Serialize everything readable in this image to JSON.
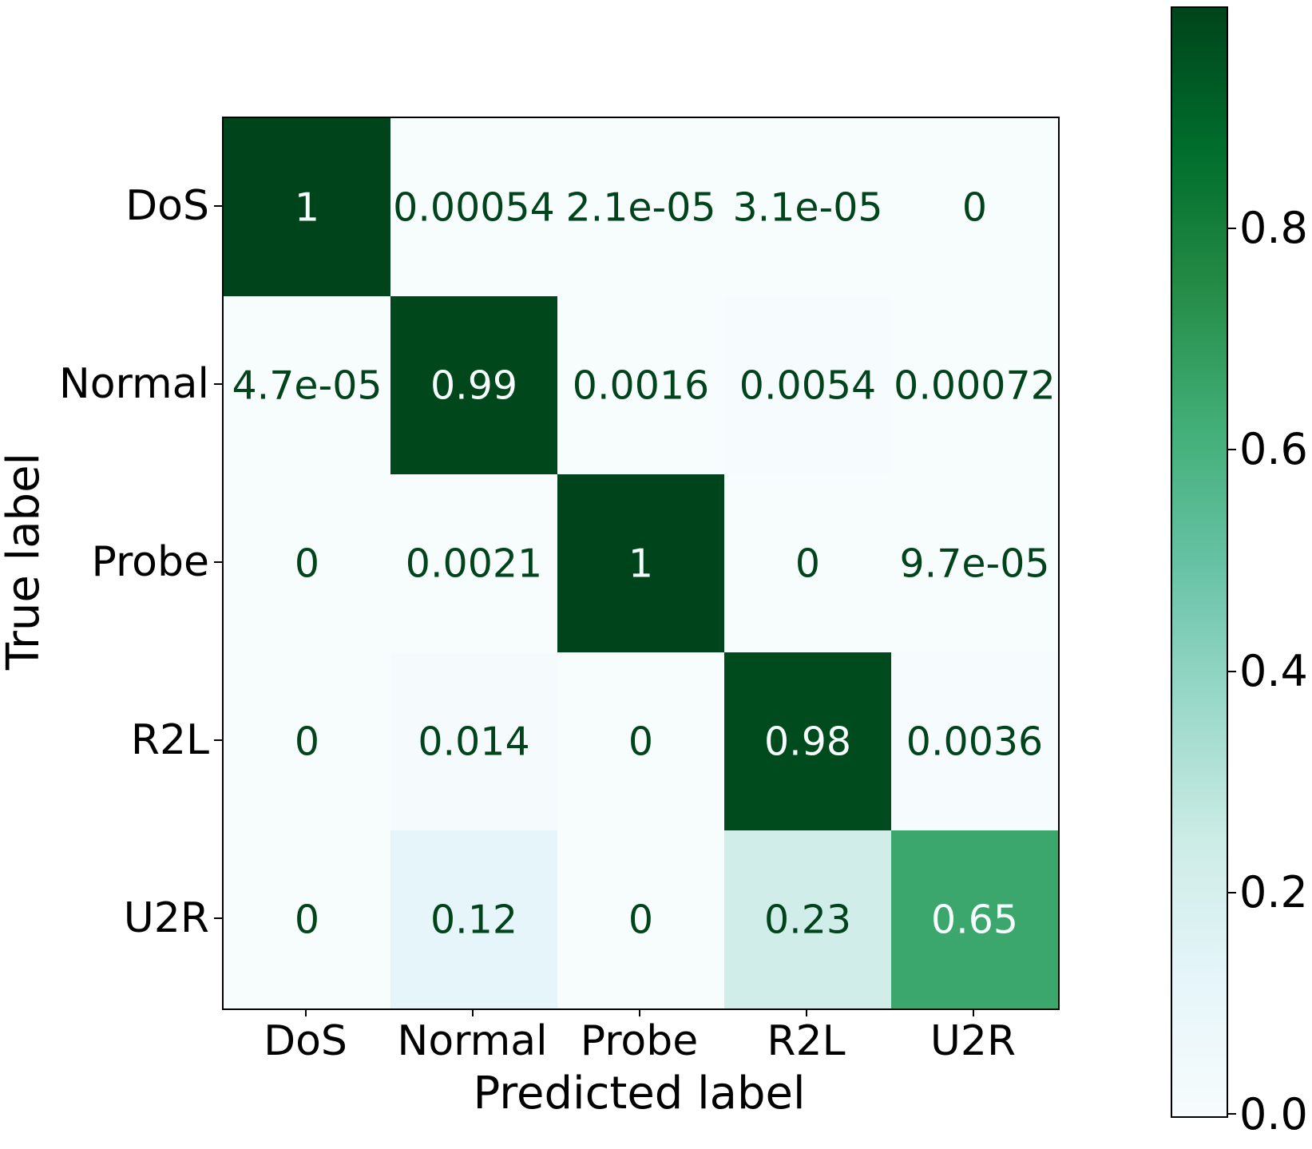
{
  "chart_data": {
    "type": "heatmap",
    "title": "",
    "xlabel": "Predicted label",
    "ylabel": "True label",
    "x_categories": [
      "DoS",
      "Normal",
      "Probe",
      "R2L",
      "U2R"
    ],
    "y_categories": [
      "DoS",
      "Normal",
      "Probe",
      "R2L",
      "U2R"
    ],
    "cell_labels": [
      [
        "1",
        "0.00054",
        "2.1e-05",
        "3.1e-05",
        "0"
      ],
      [
        "4.7e-05",
        "0.99",
        "0.0016",
        "0.0054",
        "0.00072"
      ],
      [
        "0",
        "0.0021",
        "1",
        "0",
        "9.7e-05"
      ],
      [
        "0",
        "0.014",
        "0",
        "0.98",
        "0.0036"
      ],
      [
        "0",
        "0.12",
        "0",
        "0.23",
        "0.65"
      ]
    ],
    "values": [
      [
        1.0,
        0.00054,
        2.1e-05,
        3.1e-05,
        0.0
      ],
      [
        4.7e-05,
        0.99,
        0.0016,
        0.0054,
        0.00072
      ],
      [
        0.0,
        0.0021,
        1.0,
        0.0,
        9.7e-05
      ],
      [
        0.0,
        0.014,
        0.0,
        0.98,
        0.0036
      ],
      [
        0.0,
        0.12,
        0.0,
        0.23,
        0.65
      ]
    ],
    "vmin": 0.0,
    "vmax": 1.0,
    "grid": false,
    "legend_position": "none",
    "colorbar": {
      "tick_labels": [
        "0.0",
        "0.2",
        "0.4",
        "0.6",
        "0.8"
      ],
      "tick_values": [
        0.0,
        0.2,
        0.4,
        0.6,
        0.8
      ],
      "orientation": "vertical"
    },
    "colormap": {
      "name": "BuGn",
      "stops": [
        "#f7fcfd",
        "#e5f5f9",
        "#ccece6",
        "#99d8c9",
        "#66c2a4",
        "#41ae76",
        "#238b45",
        "#006d2c",
        "#00441b"
      ]
    },
    "text_color_on_light": "#00441b",
    "text_color_on_dark": "#f7fcfd",
    "text_threshold": 0.5,
    "axis_color": "#000000"
  }
}
